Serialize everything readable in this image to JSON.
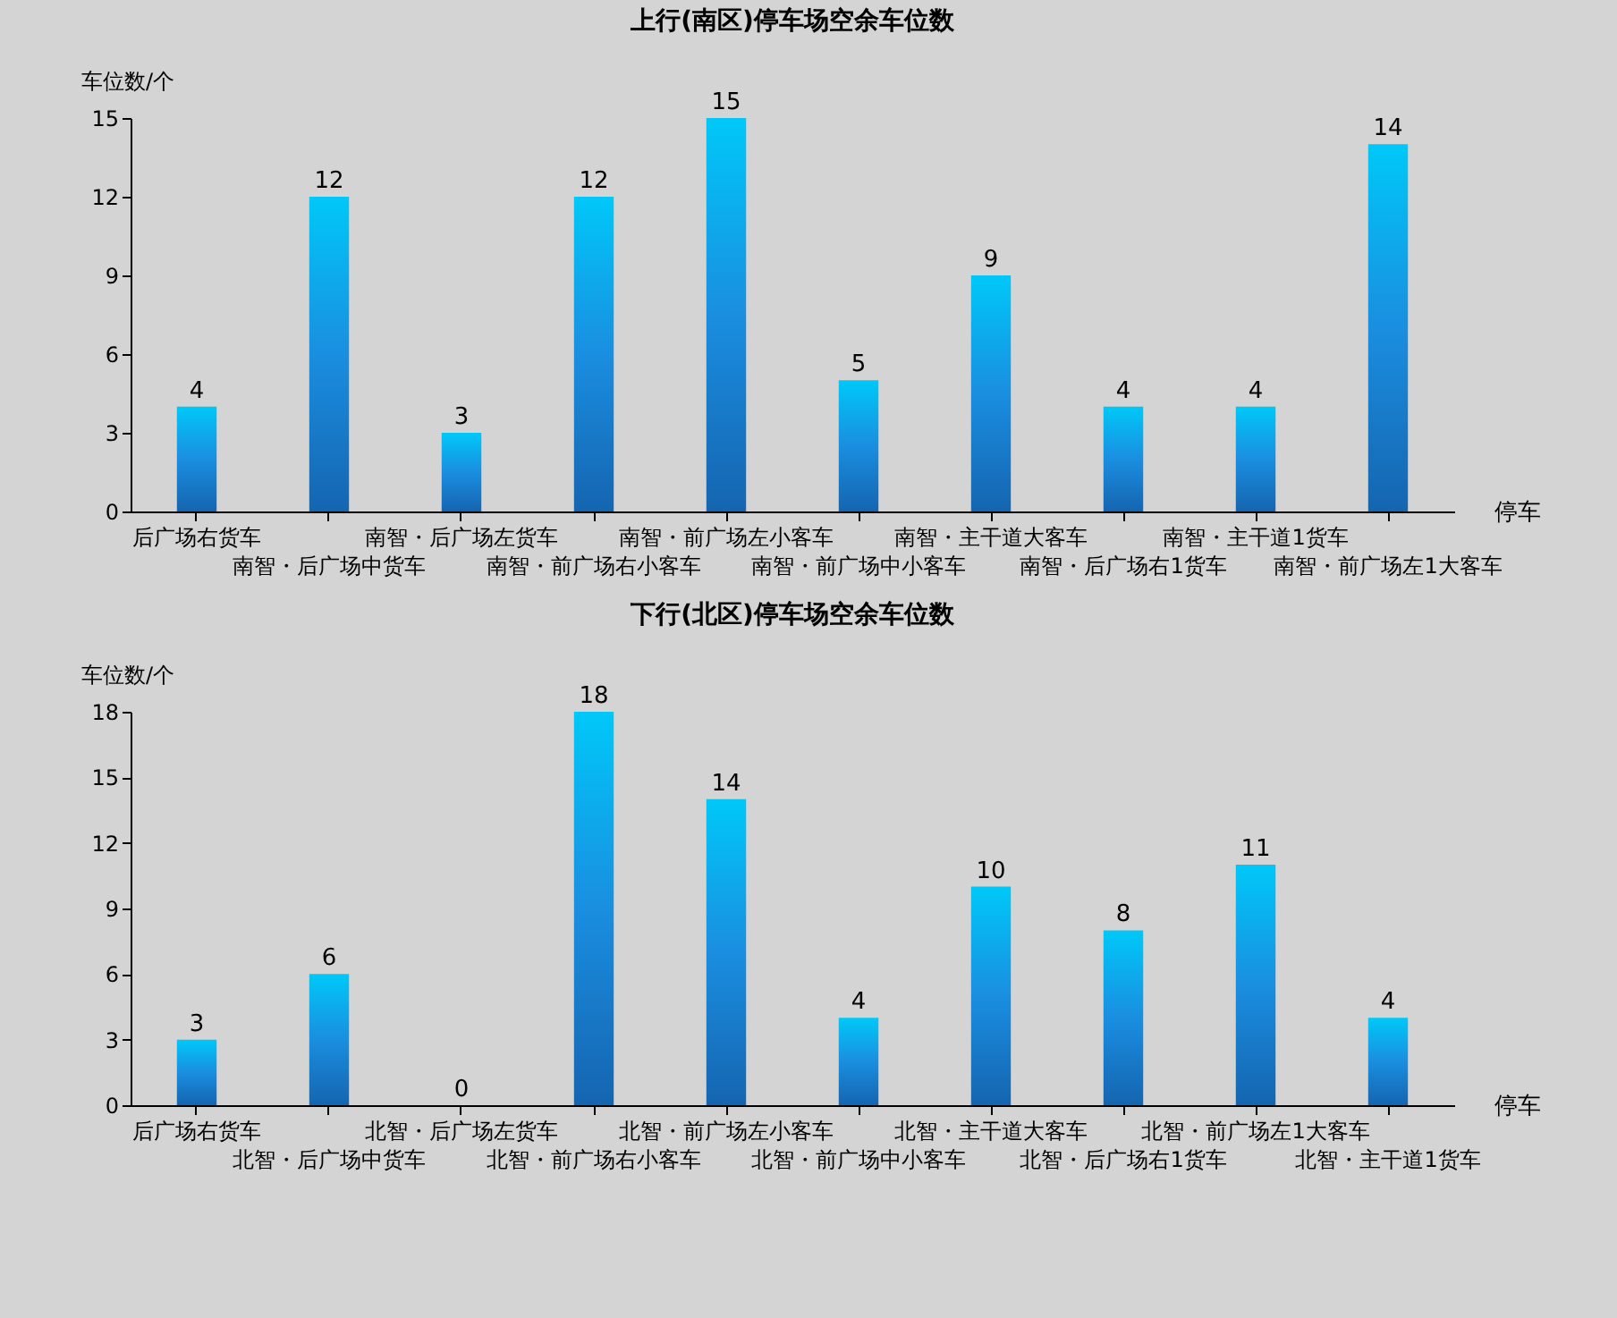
{
  "chart_data": [
    {
      "type": "bar",
      "title": "上行(南区)停车场空余车位数",
      "xlabel": "停车",
      "ylabel": "车位数/个",
      "categories": [
        "后广场右货车",
        "南智・后广场中货车",
        "南智・后广场左货车",
        "南智・前广场右小客车",
        "南智・前广场左小客车",
        "南智・前广场中小客车",
        "南智・主干道大客车",
        "南智・后广场右1货车",
        "南智・主干道1货车",
        "南智・前广场左1大客车"
      ],
      "values": [
        4,
        12,
        3,
        12,
        15,
        5,
        9,
        4,
        4,
        14
      ],
      "color": "#1a8ee0",
      "ylim": [
        0,
        15
      ],
      "yticks": [
        0,
        3,
        6,
        9,
        12,
        15
      ],
      "data_labels": true,
      "grid": false
    },
    {
      "type": "bar",
      "title": "下行(北区)停车场空余车位数",
      "xlabel": "停车",
      "ylabel": "车位数/个",
      "categories": [
        "后广场右货车",
        "北智・后广场中货车",
        "北智・后广场左货车",
        "北智・前广场右小客车",
        "北智・前广场左小客车",
        "北智・前广场中小客车",
        "北智・主干道大客车",
        "北智・后广场右1货车",
        "北智・前广场左1大客车",
        "北智・主干道1货车"
      ],
      "values": [
        3,
        6,
        0,
        18,
        14,
        4,
        10,
        8,
        11,
        4
      ],
      "color": "#1a8ee0",
      "ylim": [
        0,
        18
      ],
      "yticks": [
        0,
        3,
        6,
        9,
        12,
        15,
        18
      ],
      "data_labels": true,
      "grid": false
    }
  ]
}
